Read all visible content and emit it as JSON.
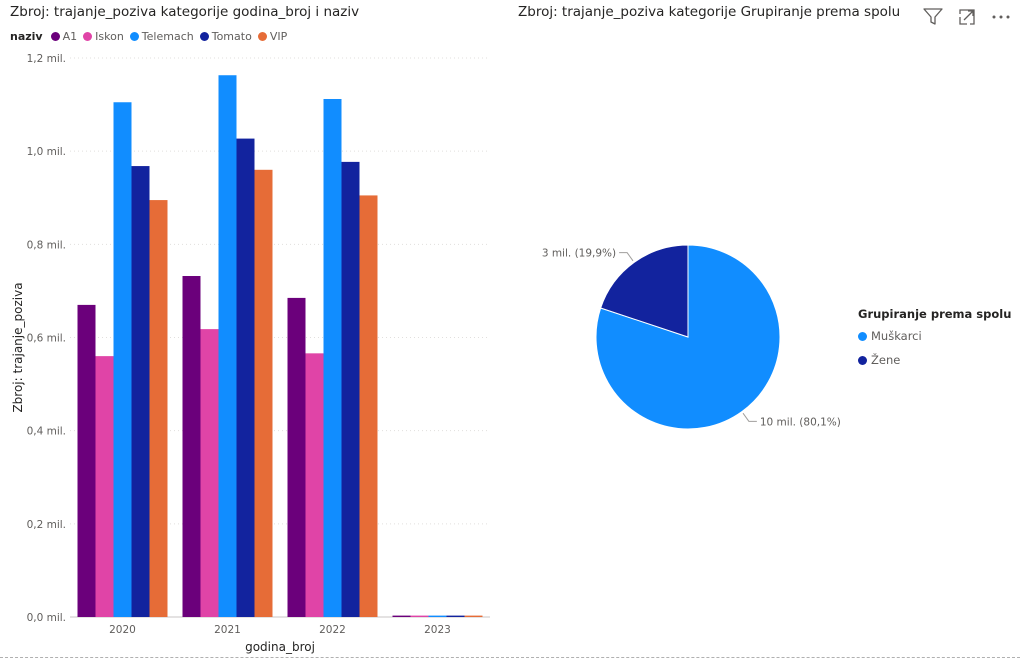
{
  "left_chart": {
    "title": "Zbroj: trajanje_poziva kategorije godina_broj i naziv",
    "legend_title": "naziv"
  },
  "right_chart": {
    "title": "Zbroj: trajanje_poziva kategorije Grupiranje prema spolu",
    "legend_title": "Grupiranje prema spolu"
  },
  "toolbar": {
    "filter_icon": "filter-icon",
    "focus_icon": "focus-mode-icon",
    "more_icon": "more-options-icon"
  },
  "chart_data": [
    {
      "type": "bar",
      "title": "Zbroj: trajanje_poziva kategorije godina_broj i naziv",
      "xlabel": "godina_broj",
      "ylabel": "Zbroj: trajanje_poziva",
      "categories": [
        "2020",
        "2021",
        "2022",
        "2023"
      ],
      "ylim": [
        0,
        1200000
      ],
      "yticks": [
        0,
        200000,
        400000,
        600000,
        800000,
        1000000,
        1200000
      ],
      "ytick_labels": [
        "0,0 mil.",
        "0,2 mil.",
        "0,4 mil.",
        "0,6 mil.",
        "0,8 mil.",
        "1,0 mil.",
        "1,2 mil."
      ],
      "legend_position": "top-left",
      "grid": true,
      "series": [
        {
          "name": "A1",
          "color": "#6b007b",
          "values": [
            670000,
            732000,
            685000,
            3000
          ]
        },
        {
          "name": "Iskon",
          "color": "#e044a7",
          "values": [
            560000,
            618000,
            566000,
            3000
          ]
        },
        {
          "name": "Telemach",
          "color": "#118dff",
          "values": [
            1105000,
            1163000,
            1112000,
            3000
          ]
        },
        {
          "name": "Tomato",
          "color": "#12239e",
          "values": [
            968000,
            1027000,
            977000,
            3000
          ]
        },
        {
          "name": "VIP",
          "color": "#e66c37",
          "values": [
            895000,
            960000,
            905000,
            3000
          ]
        }
      ]
    },
    {
      "type": "pie",
      "title": "Zbroj: trajanje_poziva kategorije Grupiranje prema spolu",
      "legend_title": "Grupiranje prema spolu",
      "legend_position": "right",
      "slices": [
        {
          "name": "Muškarci",
          "color": "#118dff",
          "percent": 80.1,
          "label": "10 mil. (80,1%)"
        },
        {
          "name": "Žene",
          "color": "#12239e",
          "percent": 19.9,
          "label": "3 mil. (19,9%)"
        }
      ]
    }
  ]
}
